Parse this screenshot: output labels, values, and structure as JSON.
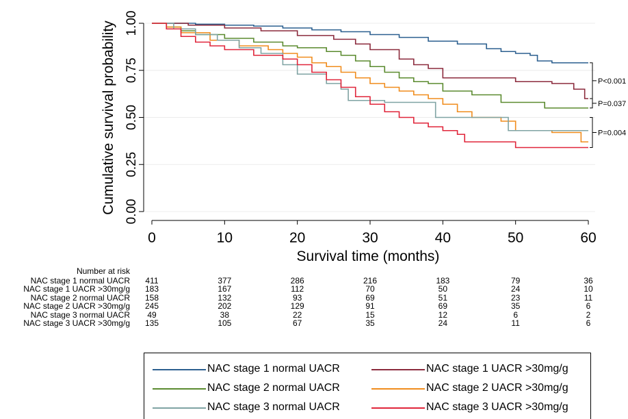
{
  "chart_data": {
    "type": "line",
    "step": true,
    "xlabel": "Survival time (months)",
    "ylabel": "Cumulative survival probability",
    "xlim": [
      0,
      60
    ],
    "ylim": [
      0,
      1
    ],
    "xticks": [
      "0",
      "10",
      "20",
      "30",
      "40",
      "50",
      "60"
    ],
    "yticks": [
      "0.00",
      "0.25",
      "0.50",
      "0.75",
      "1.00"
    ],
    "grid": "horizontal",
    "series": [
      {
        "name": "NAC stage 1 normal UACR",
        "color": "#2b5f8f",
        "x": [
          0,
          6,
          10,
          14,
          18,
          22,
          26,
          30,
          34,
          38,
          42,
          46,
          48,
          50,
          52,
          53,
          55,
          60
        ],
        "y": [
          1.0,
          0.995,
          0.99,
          0.985,
          0.975,
          0.965,
          0.955,
          0.94,
          0.925,
          0.905,
          0.89,
          0.865,
          0.85,
          0.84,
          0.83,
          0.8,
          0.79,
          0.79
        ]
      },
      {
        "name": "NAC stage 1 UACR >30mg/g",
        "color": "#8b2a3c",
        "x": [
          0,
          5,
          10,
          15,
          20,
          25,
          28,
          30,
          34,
          36,
          38,
          40,
          45,
          50,
          55,
          58,
          59.5,
          60
        ],
        "y": [
          1.0,
          0.99,
          0.975,
          0.96,
          0.935,
          0.915,
          0.89,
          0.86,
          0.81,
          0.78,
          0.76,
          0.71,
          0.71,
          0.69,
          0.68,
          0.65,
          0.6,
          0.6
        ]
      },
      {
        "name": "NAC stage 2 normal UACR",
        "color": "#5a8a2e",
        "x": [
          0,
          2,
          4,
          6,
          10,
          14,
          18,
          20,
          24,
          26,
          28,
          30,
          32,
          34,
          36,
          38,
          40,
          44,
          48,
          54,
          60
        ],
        "y": [
          1.0,
          0.98,
          0.96,
          0.94,
          0.92,
          0.9,
          0.88,
          0.87,
          0.85,
          0.83,
          0.8,
          0.77,
          0.74,
          0.71,
          0.69,
          0.68,
          0.64,
          0.62,
          0.58,
          0.55,
          0.55
        ]
      },
      {
        "name": "NAC stage 2 UACR >30mg/g",
        "color": "#f08c1c",
        "x": [
          0,
          2,
          4,
          8,
          12,
          16,
          18,
          20,
          22,
          24,
          26,
          28,
          30,
          32,
          34,
          36,
          38,
          40,
          42,
          44,
          48,
          50,
          55,
          59,
          60
        ],
        "y": [
          1.0,
          0.98,
          0.95,
          0.91,
          0.88,
          0.86,
          0.84,
          0.82,
          0.79,
          0.77,
          0.74,
          0.71,
          0.68,
          0.66,
          0.64,
          0.62,
          0.6,
          0.57,
          0.53,
          0.5,
          0.48,
          0.43,
          0.42,
          0.37,
          0.37
        ]
      },
      {
        "name": "NAC stage 3 normal UACR",
        "color": "#7fa3a3",
        "x": [
          0,
          3,
          6,
          9,
          12,
          15,
          18,
          20,
          22,
          24,
          26,
          27,
          30,
          32,
          36,
          38,
          39,
          40,
          45,
          48,
          49,
          55,
          60
        ],
        "y": [
          1.0,
          0.97,
          0.94,
          0.91,
          0.87,
          0.84,
          0.78,
          0.73,
          0.73,
          0.68,
          0.65,
          0.59,
          0.59,
          0.58,
          0.58,
          0.58,
          0.5,
          0.5,
          0.5,
          0.5,
          0.43,
          0.43,
          0.43
        ]
      },
      {
        "name": "NAC stage 3 UACR >30mg/g",
        "color": "#e0253a",
        "x": [
          0,
          2,
          4,
          6,
          8,
          10,
          14,
          18,
          20,
          22,
          24,
          26,
          28,
          30,
          32,
          34,
          36,
          38,
          40,
          42,
          43,
          48,
          50,
          60
        ],
        "y": [
          1.0,
          0.97,
          0.93,
          0.9,
          0.88,
          0.86,
          0.83,
          0.81,
          0.78,
          0.74,
          0.7,
          0.66,
          0.61,
          0.57,
          0.53,
          0.5,
          0.47,
          0.45,
          0.43,
          0.41,
          0.37,
          0.37,
          0.34,
          0.34
        ]
      }
    ],
    "annotations": [
      {
        "text": "P<0.001",
        "from": 0.79,
        "to": 0.6
      },
      {
        "text": "P=0.037",
        "from": 0.6,
        "to": 0.55
      },
      {
        "text": "P=0.004",
        "from": 0.5,
        "to": 0.34
      }
    ]
  },
  "risk_table": {
    "title": "Number at risk",
    "times": [
      0,
      10,
      20,
      30,
      40,
      50,
      60
    ],
    "rows": [
      {
        "label": "NAC stage 1 normal UACR",
        "values": [
          "411",
          "377",
          "286",
          "216",
          "183",
          "79",
          "36"
        ]
      },
      {
        "label": "NAC stage 1 UACR >30mg/g",
        "values": [
          "183",
          "167",
          "112",
          "70",
          "50",
          "24",
          "10"
        ]
      },
      {
        "label": "NAC stage 2 normal UACR",
        "values": [
          "158",
          "132",
          "93",
          "69",
          "51",
          "23",
          "11"
        ]
      },
      {
        "label": "NAC stage 2 UACR >30mg/g",
        "values": [
          "245",
          "202",
          "129",
          "91",
          "69",
          "35",
          "6"
        ]
      },
      {
        "label": "NAC stage 3 normal UACR",
        "values": [
          "49",
          "38",
          "22",
          "15",
          "12",
          "6",
          "2"
        ]
      },
      {
        "label": "NAC stage 3 UACR >30mg/g",
        "values": [
          "135",
          "105",
          "67",
          "35",
          "24",
          "11",
          "6"
        ]
      }
    ]
  },
  "legend": {
    "placement": "bottom",
    "items": [
      {
        "label": "NAC stage 1 normal UACR",
        "color": "#2b5f8f"
      },
      {
        "label": "NAC stage 1 UACR >30mg/g",
        "color": "#8b2a3c"
      },
      {
        "label": "NAC stage 2 normal UACR",
        "color": "#5a8a2e"
      },
      {
        "label": "NAC stage 2 UACR >30mg/g",
        "color": "#f08c1c"
      },
      {
        "label": "NAC stage 3 normal UACR",
        "color": "#7fa3a3"
      },
      {
        "label": "NAC stage 3 UACR >30mg/g",
        "color": "#e0253a"
      }
    ]
  }
}
